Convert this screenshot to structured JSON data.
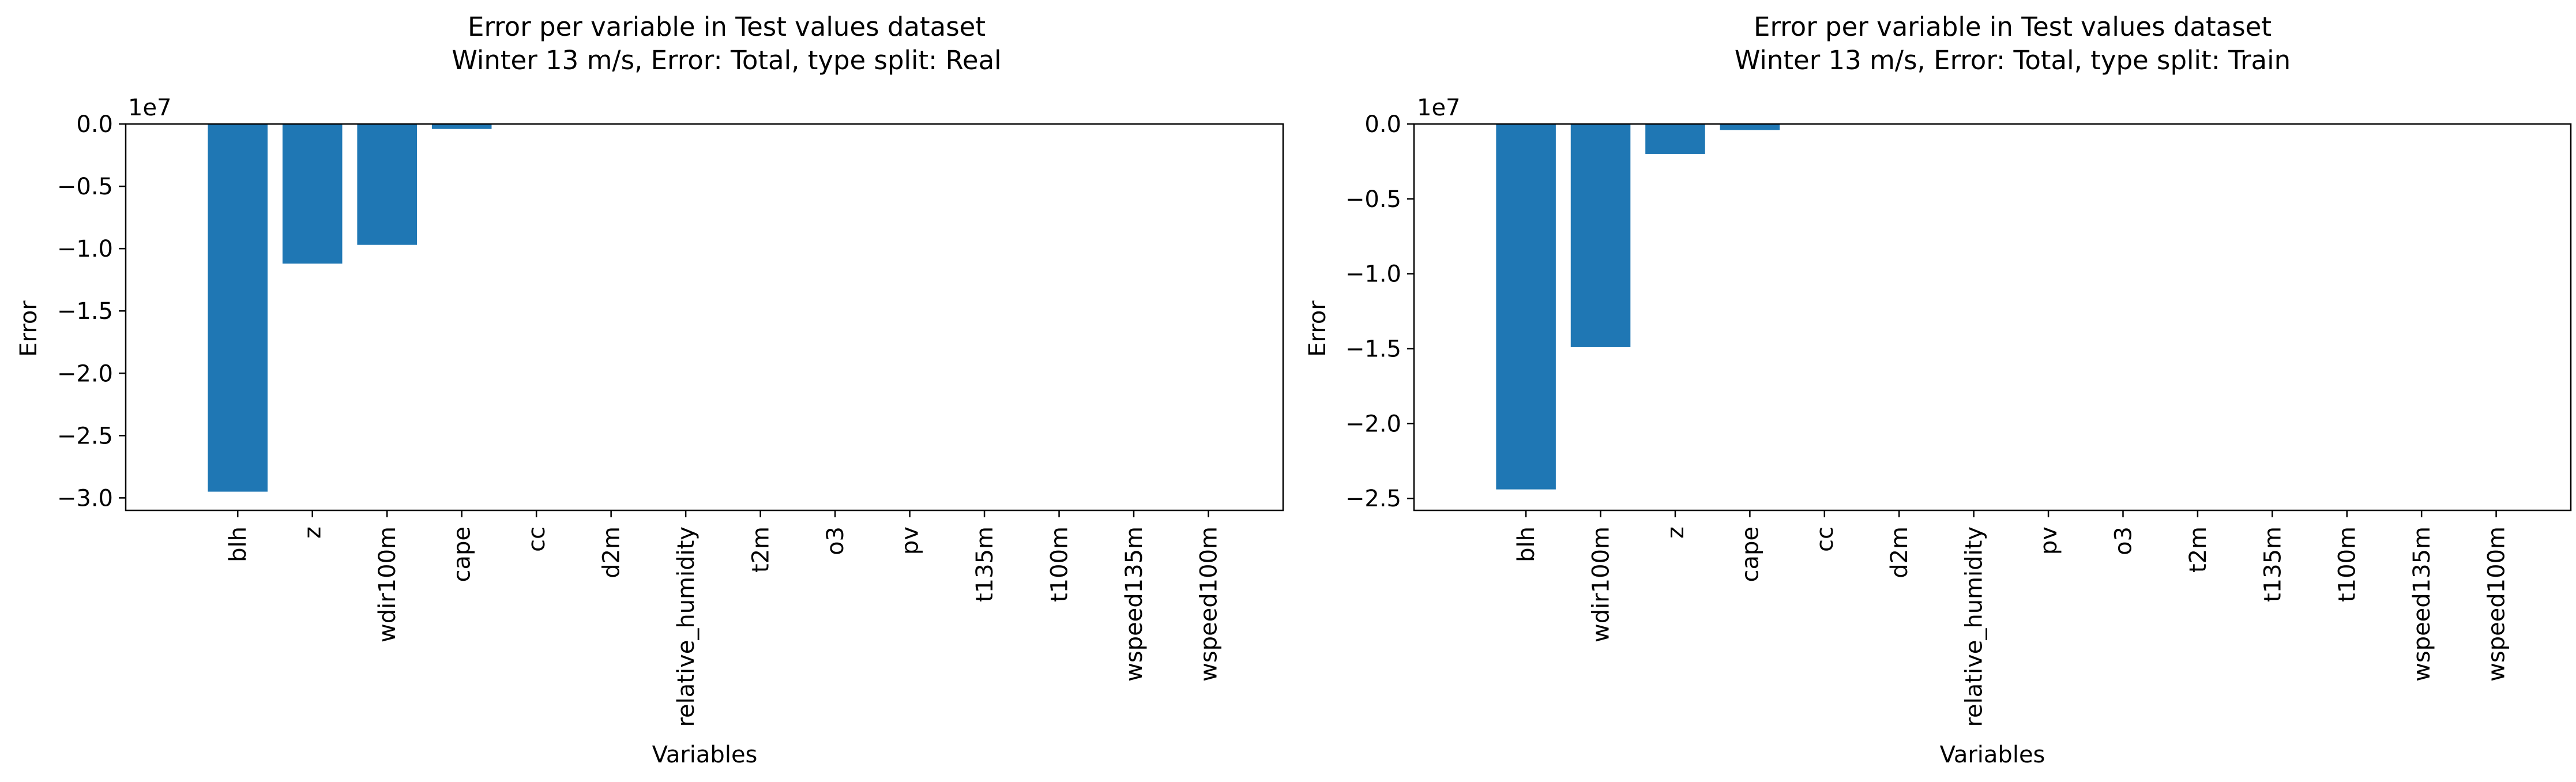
{
  "chart_data": [
    {
      "type": "bar",
      "title": "Error per variable in Test values dataset",
      "subtitle": "Winter 13 m/s, Error: Total, type split: Real",
      "xlabel": "Variables",
      "ylabel": "Error",
      "offset_label": "1e7",
      "categories": [
        "blh",
        "z",
        "wdir100m",
        "cape",
        "cc",
        "d2m",
        "relative_humidity",
        "t2m",
        "o3",
        "pv",
        "t135m",
        "t100m",
        "wspeed135m",
        "wspeed100m"
      ],
      "values": [
        -29500000,
        -11200000,
        -9700000,
        -400000,
        0,
        0,
        0,
        0,
        0,
        0,
        0,
        0,
        0,
        0
      ],
      "ylim": [
        -31000000,
        0
      ],
      "yticks": [
        0,
        -5000000,
        -10000000,
        -15000000,
        -20000000,
        -25000000,
        -30000000
      ],
      "ytick_labels": [
        "0.0",
        "−0.5",
        "−1.0",
        "−1.5",
        "−2.0",
        "−2.5",
        "−3.0"
      ],
      "bar_color": "#1f77b4",
      "grid": false
    },
    {
      "type": "bar",
      "title": "Error per variable in Test values dataset",
      "subtitle": "Winter 13 m/s, Error: Total, type split: Train",
      "xlabel": "Variables",
      "ylabel": "Error",
      "offset_label": "1e7",
      "categories": [
        "blh",
        "wdir100m",
        "z",
        "cape",
        "cc",
        "d2m",
        "relative_humidity",
        "pv",
        "o3",
        "t2m",
        "t135m",
        "t100m",
        "wspeed135m",
        "wspeed100m"
      ],
      "values": [
        -24400000,
        -14900000,
        -2000000,
        -400000,
        0,
        0,
        0,
        0,
        0,
        0,
        0,
        0,
        0,
        0
      ],
      "ylim": [
        -25800000,
        0
      ],
      "yticks": [
        0,
        -5000000,
        -10000000,
        -15000000,
        -20000000,
        -25000000
      ],
      "ytick_labels": [
        "0.0",
        "−0.5",
        "−1.0",
        "−1.5",
        "−2.0",
        "−2.5"
      ],
      "bar_color": "#1f77b4",
      "grid": false
    }
  ]
}
